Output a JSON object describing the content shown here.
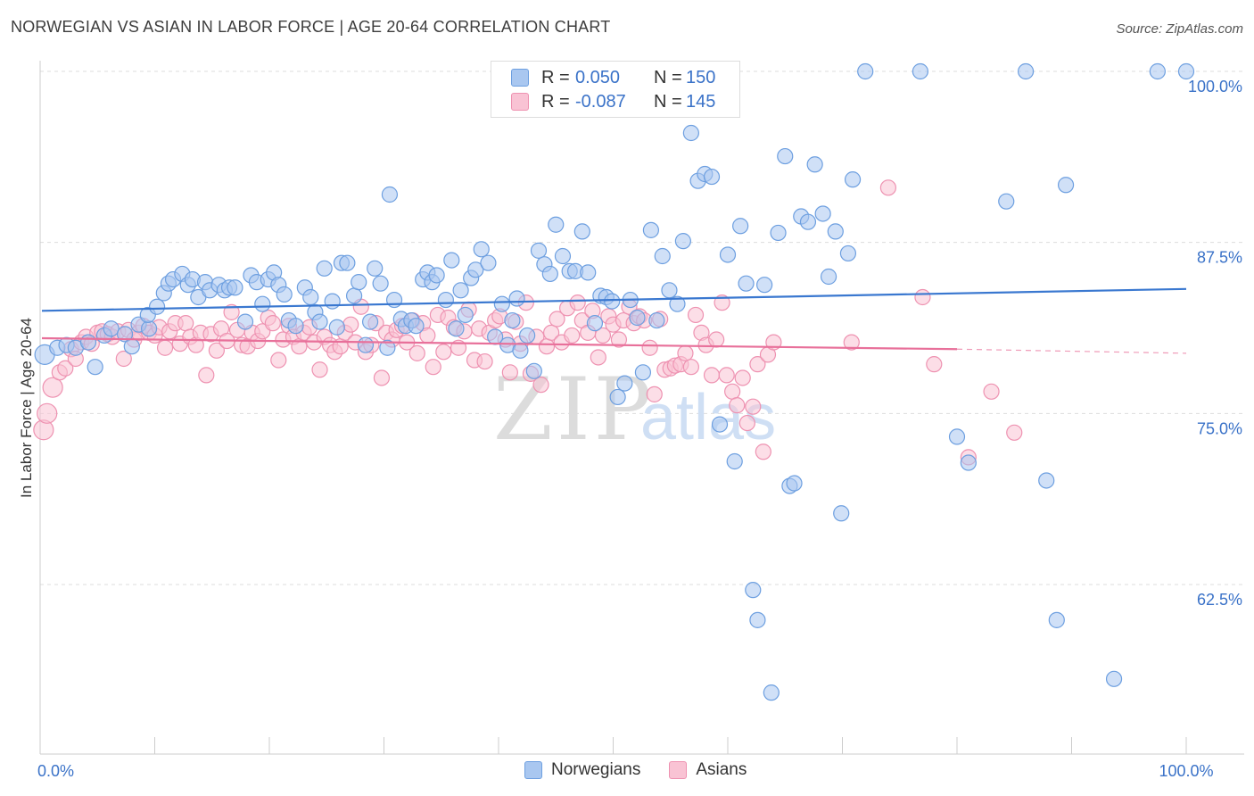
{
  "title": "NORWEGIAN VS ASIAN IN LABOR FORCE | AGE 20-64 CORRELATION CHART",
  "source": "Source: ZipAtlas.com",
  "watermark": {
    "zip": "ZIP",
    "atlas": "atlas"
  },
  "legend": {
    "r_label": "R =",
    "n_label": "N =",
    "rows": [
      {
        "name": "Norwegians",
        "r": "0.050",
        "n": "150",
        "color": "#6d9fe0"
      },
      {
        "name": "Asians",
        "r": "-0.087",
        "n": "145",
        "color": "#ee92b1"
      }
    ]
  },
  "colors": {
    "blue_fill": "#a9c7f0",
    "blue_stroke": "#6d9fe0",
    "blue_line": "#3a78d0",
    "pink_fill": "#f9c3d4",
    "pink_stroke": "#ee92b1",
    "pink_line": "#e8709a",
    "axis_text": "#3a72c8",
    "grid": "#dddddd"
  },
  "chart_data": {
    "type": "scatter",
    "title": "NORWEGIAN VS ASIAN IN LABOR FORCE | AGE 20-64 CORRELATION CHART",
    "xlabel": "",
    "ylabel": "In Labor Force | Age 20-64",
    "xlim": [
      0,
      100
    ],
    "ylim": [
      51,
      102.5
    ],
    "x_tick_labels": [
      {
        "value": 0,
        "label": "0.0%"
      },
      {
        "value": 100,
        "label": "100.0%"
      }
    ],
    "y_ticks": [
      {
        "value": 100,
        "label": "100.0%"
      },
      {
        "value": 87.5,
        "label": "87.5%"
      },
      {
        "value": 75,
        "label": "75.0%"
      },
      {
        "value": 62.5,
        "label": "62.5%"
      }
    ],
    "grid": "horizontal dashed",
    "series": [
      {
        "name": "Norwegians",
        "r": 0.05,
        "n": 150,
        "trend": {
          "x": [
            0,
            100
          ],
          "y": [
            82.5,
            84.1
          ]
        },
        "points": [
          [
            0.4,
            79.3
          ],
          [
            1.5,
            79.8
          ],
          [
            2.3,
            80.0
          ],
          [
            3.1,
            79.8
          ],
          [
            4.2,
            80.2
          ],
          [
            4.8,
            78.4
          ],
          [
            5.6,
            80.7
          ],
          [
            6.2,
            81.2
          ],
          [
            7.4,
            80.8
          ],
          [
            8.0,
            79.9
          ],
          [
            8.6,
            81.5
          ],
          [
            9.5,
            81.2
          ],
          [
            9.4,
            82.2
          ],
          [
            10.2,
            82.8
          ],
          [
            10.8,
            83.8
          ],
          [
            11.2,
            84.5
          ],
          [
            11.6,
            84.8
          ],
          [
            12.4,
            85.2
          ],
          [
            12.9,
            84.4
          ],
          [
            13.3,
            84.8
          ],
          [
            13.8,
            83.5
          ],
          [
            14.4,
            84.6
          ],
          [
            14.8,
            84.0
          ],
          [
            15.6,
            84.4
          ],
          [
            16.1,
            84.0
          ],
          [
            16.5,
            84.2
          ],
          [
            17.0,
            84.2
          ],
          [
            17.9,
            81.7
          ],
          [
            18.4,
            85.1
          ],
          [
            18.9,
            84.6
          ],
          [
            19.4,
            83.0
          ],
          [
            19.9,
            84.8
          ],
          [
            20.4,
            85.3
          ],
          [
            20.8,
            84.4
          ],
          [
            21.3,
            83.7
          ],
          [
            21.7,
            81.8
          ],
          [
            22.3,
            81.4
          ],
          [
            23.1,
            84.2
          ],
          [
            23.6,
            83.5
          ],
          [
            24.0,
            82.4
          ],
          [
            24.4,
            81.7
          ],
          [
            24.8,
            85.6
          ],
          [
            25.5,
            83.2
          ],
          [
            25.9,
            81.3
          ],
          [
            26.3,
            86.0
          ],
          [
            26.8,
            86.0
          ],
          [
            27.4,
            83.6
          ],
          [
            27.8,
            84.6
          ],
          [
            28.4,
            80.0
          ],
          [
            28.8,
            81.7
          ],
          [
            29.2,
            85.6
          ],
          [
            29.7,
            84.5
          ],
          [
            30.3,
            79.8
          ],
          [
            30.5,
            91.0
          ],
          [
            30.9,
            83.3
          ],
          [
            31.5,
            81.9
          ],
          [
            31.9,
            81.4
          ],
          [
            32.4,
            81.8
          ],
          [
            32.8,
            81.4
          ],
          [
            33.4,
            84.8
          ],
          [
            33.8,
            85.3
          ],
          [
            34.2,
            84.6
          ],
          [
            34.6,
            85.1
          ],
          [
            35.4,
            83.3
          ],
          [
            35.9,
            86.2
          ],
          [
            36.3,
            81.2
          ],
          [
            36.7,
            84.0
          ],
          [
            37.1,
            82.2
          ],
          [
            37.6,
            84.9
          ],
          [
            38.0,
            85.5
          ],
          [
            38.5,
            87.0
          ],
          [
            39.1,
            86.0
          ],
          [
            39.7,
            80.6
          ],
          [
            40.3,
            83.0
          ],
          [
            40.8,
            80.0
          ],
          [
            41.2,
            81.8
          ],
          [
            41.6,
            83.4
          ],
          [
            41.9,
            79.6
          ],
          [
            42.5,
            80.7
          ],
          [
            43.1,
            78.1
          ],
          [
            43.5,
            86.9
          ],
          [
            44.0,
            85.9
          ],
          [
            44.5,
            85.2
          ],
          [
            45.0,
            88.8
          ],
          [
            45.6,
            86.5
          ],
          [
            46.2,
            85.4
          ],
          [
            46.7,
            85.4
          ],
          [
            47.3,
            88.3
          ],
          [
            47.8,
            85.3
          ],
          [
            48.4,
            81.6
          ],
          [
            48.9,
            83.6
          ],
          [
            49.4,
            83.5
          ],
          [
            49.9,
            83.2
          ],
          [
            50.4,
            76.2
          ],
          [
            51.0,
            77.2
          ],
          [
            51.5,
            83.3
          ],
          [
            52.1,
            82.0
          ],
          [
            52.6,
            78.0
          ],
          [
            53.3,
            88.4
          ],
          [
            53.8,
            81.8
          ],
          [
            54.3,
            86.5
          ],
          [
            54.9,
            84.0
          ],
          [
            55.6,
            83.0
          ],
          [
            56.1,
            87.6
          ],
          [
            56.8,
            95.5
          ],
          [
            57.4,
            92.0
          ],
          [
            58.0,
            92.5
          ],
          [
            58.6,
            92.3
          ],
          [
            59.3,
            74.2
          ],
          [
            60.0,
            86.6
          ],
          [
            60.6,
            71.5
          ],
          [
            61.1,
            88.7
          ],
          [
            61.6,
            84.5
          ],
          [
            62.2,
            62.1
          ],
          [
            62.6,
            59.9
          ],
          [
            63.2,
            84.4
          ],
          [
            63.8,
            54.6
          ],
          [
            64.4,
            88.2
          ],
          [
            65.0,
            93.8
          ],
          [
            65.4,
            69.7
          ],
          [
            65.8,
            69.9
          ],
          [
            66.4,
            89.4
          ],
          [
            67.0,
            89.0
          ],
          [
            67.6,
            93.2
          ],
          [
            68.3,
            89.6
          ],
          [
            68.8,
            85.0
          ],
          [
            69.4,
            88.3
          ],
          [
            69.9,
            67.7
          ],
          [
            70.5,
            86.7
          ],
          [
            70.9,
            92.1
          ],
          [
            72.0,
            100.0
          ],
          [
            76.8,
            100.0
          ],
          [
            80.0,
            73.3
          ],
          [
            81.0,
            71.4
          ],
          [
            84.3,
            90.5
          ],
          [
            86.0,
            100.0
          ],
          [
            87.8,
            70.1
          ],
          [
            88.7,
            59.9
          ],
          [
            89.5,
            91.7
          ],
          [
            93.7,
            55.6
          ],
          [
            97.5,
            100.0
          ],
          [
            100.0,
            100.0
          ]
        ]
      },
      {
        "name": "Asians",
        "r": -0.087,
        "n": 145,
        "trend": {
          "x": [
            0,
            80
          ],
          "y": [
            80.5,
            79.7
          ]
        },
        "dashed_extension": {
          "x": [
            80,
            100
          ],
          "y": [
            79.7,
            79.4
          ]
        },
        "points": [
          [
            0.3,
            73.8
          ],
          [
            0.6,
            75.0
          ],
          [
            1.1,
            76.9
          ],
          [
            1.7,
            78.0
          ],
          [
            2.2,
            78.3
          ],
          [
            2.7,
            79.7
          ],
          [
            3.1,
            79.0
          ],
          [
            3.6,
            80.2
          ],
          [
            4.0,
            80.6
          ],
          [
            4.5,
            80.1
          ],
          [
            5.0,
            80.9
          ],
          [
            5.4,
            81.0
          ],
          [
            5.9,
            80.8
          ],
          [
            6.3,
            80.6
          ],
          [
            6.8,
            81.0
          ],
          [
            7.3,
            79.0
          ],
          [
            7.7,
            81.1
          ],
          [
            8.2,
            80.4
          ],
          [
            8.6,
            80.9
          ],
          [
            9.0,
            81.4
          ],
          [
            9.5,
            80.9
          ],
          [
            10.0,
            80.7
          ],
          [
            10.4,
            81.3
          ],
          [
            10.9,
            79.8
          ],
          [
            11.3,
            81.0
          ],
          [
            11.8,
            81.6
          ],
          [
            12.2,
            80.1
          ],
          [
            12.7,
            81.6
          ],
          [
            13.1,
            80.6
          ],
          [
            13.6,
            80.0
          ],
          [
            14.0,
            80.9
          ],
          [
            14.5,
            77.8
          ],
          [
            14.9,
            80.8
          ],
          [
            15.4,
            79.6
          ],
          [
            15.8,
            81.2
          ],
          [
            16.3,
            80.3
          ],
          [
            16.7,
            82.4
          ],
          [
            17.2,
            81.1
          ],
          [
            17.6,
            80.0
          ],
          [
            18.1,
            79.9
          ],
          [
            18.5,
            80.9
          ],
          [
            19.0,
            80.3
          ],
          [
            19.4,
            81.0
          ],
          [
            19.9,
            82.0
          ],
          [
            20.3,
            81.6
          ],
          [
            20.8,
            78.9
          ],
          [
            21.2,
            80.4
          ],
          [
            21.7,
            81.4
          ],
          [
            22.1,
            80.6
          ],
          [
            22.6,
            79.9
          ],
          [
            23.0,
            80.9
          ],
          [
            23.5,
            81.3
          ],
          [
            23.9,
            80.2
          ],
          [
            24.4,
            78.2
          ],
          [
            24.8,
            80.6
          ],
          [
            25.3,
            80.0
          ],
          [
            25.7,
            79.5
          ],
          [
            26.2,
            79.9
          ],
          [
            26.6,
            80.9
          ],
          [
            27.1,
            81.5
          ],
          [
            27.5,
            80.2
          ],
          [
            28.0,
            82.8
          ],
          [
            28.4,
            79.5
          ],
          [
            28.9,
            80.0
          ],
          [
            29.3,
            81.6
          ],
          [
            29.8,
            77.6
          ],
          [
            30.2,
            80.9
          ],
          [
            30.7,
            80.4
          ],
          [
            31.1,
            81.1
          ],
          [
            31.6,
            81.4
          ],
          [
            32.0,
            80.2
          ],
          [
            32.5,
            81.8
          ],
          [
            32.9,
            79.4
          ],
          [
            33.4,
            81.6
          ],
          [
            33.8,
            80.7
          ],
          [
            34.3,
            78.4
          ],
          [
            34.7,
            82.2
          ],
          [
            35.2,
            79.5
          ],
          [
            35.6,
            82.0
          ],
          [
            36.1,
            81.3
          ],
          [
            36.5,
            79.8
          ],
          [
            37.0,
            81.0
          ],
          [
            37.4,
            82.6
          ],
          [
            37.9,
            78.9
          ],
          [
            38.3,
            81.2
          ],
          [
            38.8,
            78.8
          ],
          [
            39.2,
            80.9
          ],
          [
            39.7,
            81.8
          ],
          [
            40.1,
            82.1
          ],
          [
            40.6,
            80.4
          ],
          [
            41.0,
            78.0
          ],
          [
            41.5,
            81.7
          ],
          [
            41.9,
            80.1
          ],
          [
            42.4,
            83.1
          ],
          [
            42.8,
            77.9
          ],
          [
            43.3,
            80.6
          ],
          [
            43.7,
            77.1
          ],
          [
            44.2,
            79.9
          ],
          [
            44.6,
            80.9
          ],
          [
            45.1,
            81.9
          ],
          [
            45.5,
            80.2
          ],
          [
            46.0,
            82.7
          ],
          [
            46.4,
            80.7
          ],
          [
            46.9,
            83.1
          ],
          [
            47.3,
            81.8
          ],
          [
            47.8,
            80.9
          ],
          [
            48.2,
            82.5
          ],
          [
            48.7,
            79.1
          ],
          [
            49.1,
            80.7
          ],
          [
            49.6,
            82.1
          ],
          [
            50.0,
            81.5
          ],
          [
            50.5,
            80.4
          ],
          [
            50.9,
            81.8
          ],
          [
            51.4,
            82.8
          ],
          [
            51.8,
            81.6
          ],
          [
            52.3,
            82.1
          ],
          [
            52.7,
            81.8
          ],
          [
            53.2,
            79.8
          ],
          [
            53.6,
            76.4
          ],
          [
            54.1,
            81.9
          ],
          [
            54.5,
            78.2
          ],
          [
            55.0,
            78.3
          ],
          [
            55.4,
            78.5
          ],
          [
            55.9,
            78.6
          ],
          [
            56.3,
            79.4
          ],
          [
            56.8,
            78.4
          ],
          [
            57.2,
            82.2
          ],
          [
            57.7,
            80.9
          ],
          [
            58.1,
            80.0
          ],
          [
            58.6,
            77.8
          ],
          [
            59.0,
            80.4
          ],
          [
            59.5,
            83.1
          ],
          [
            59.9,
            77.8
          ],
          [
            60.4,
            76.6
          ],
          [
            60.8,
            75.6
          ],
          [
            61.3,
            77.6
          ],
          [
            61.7,
            74.3
          ],
          [
            62.2,
            75.5
          ],
          [
            62.6,
            78.6
          ],
          [
            63.1,
            72.2
          ],
          [
            63.5,
            79.3
          ],
          [
            64.0,
            80.2
          ],
          [
            70.8,
            80.2
          ],
          [
            74.0,
            91.5
          ],
          [
            77.0,
            83.5
          ],
          [
            78.0,
            78.6
          ],
          [
            81.0,
            71.8
          ],
          [
            83.0,
            76.6
          ],
          [
            85.0,
            73.6
          ]
        ]
      }
    ]
  }
}
